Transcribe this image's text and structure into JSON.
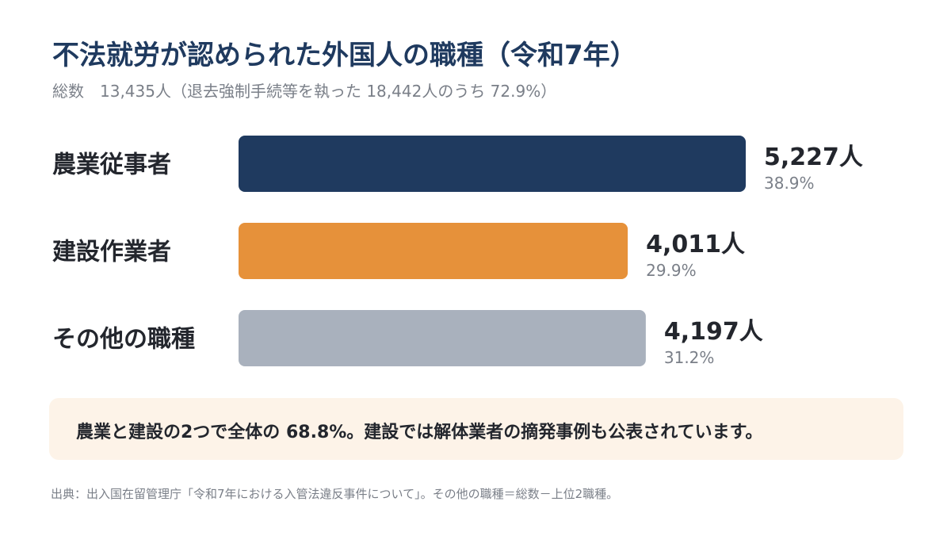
{
  "title": "不法就労が認められた外国人の職種（令和7年）",
  "subtitle": "総数　13,435人（退去強制手続等を執った 18,442人のうち 72.9%）",
  "chart_data": {
    "type": "bar",
    "orientation": "horizontal",
    "categories": [
      "農業従事者",
      "建設作業者",
      "その他の職種"
    ],
    "values": [
      5227,
      4011,
      4197
    ],
    "value_labels": [
      "5,227人",
      "4,011人",
      "4,197人"
    ],
    "percent_labels": [
      "38.9%",
      "29.9%",
      "31.2%"
    ],
    "colors": [
      "#1f3a5f",
      "#e6913a",
      "#a9b1bd"
    ],
    "xlim": [
      0,
      5227
    ],
    "grid": false
  },
  "callout": {
    "text": "農業と建設の2つで全体の 68.8%。建設では解体業者の摘発事例も公表されています。"
  },
  "source": "出典：出入国在留管理庁「令和7年における入管法違反事件について」。その他の職種＝総数－上位2職種。"
}
